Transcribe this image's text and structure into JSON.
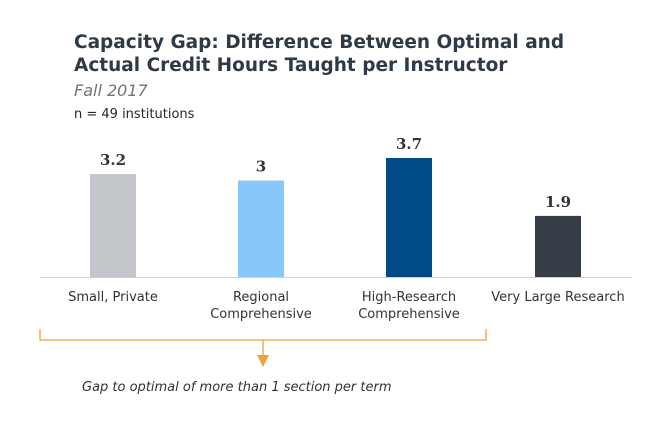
{
  "title": "Capacity Gap: Difference Between Optimal and Actual Credit Hours Taught per Instructor",
  "subtitle": "Fall 2017",
  "sample_note": "n = 49 institutions",
  "annotation": "Gap to optimal of more than 1 section per term",
  "colors": {
    "baseline": "#d0d0d0",
    "bracket": "#e8a33a",
    "value_label": "#333333",
    "category_label": "#333333"
  },
  "chart_data": {
    "type": "bar",
    "categories": [
      [
        "Small, Private"
      ],
      [
        "Regional",
        "Comprehensive"
      ],
      [
        "High-Research",
        "Comprehensive"
      ],
      [
        "Very Large Research"
      ]
    ],
    "values": [
      3.2,
      3,
      3.7,
      1.9
    ],
    "value_labels": [
      "3.2",
      "3",
      "3.7",
      "1.9"
    ],
    "bar_colors": [
      "#c3c7cb",
      "#87c7fb",
      "#004a87",
      "#353d47"
    ],
    "ylim": [
      0,
      3.7
    ],
    "xlabel": "",
    "ylabel": "",
    "grid": false,
    "legend": "none",
    "bracket_spans_categories": [
      0,
      2
    ]
  }
}
